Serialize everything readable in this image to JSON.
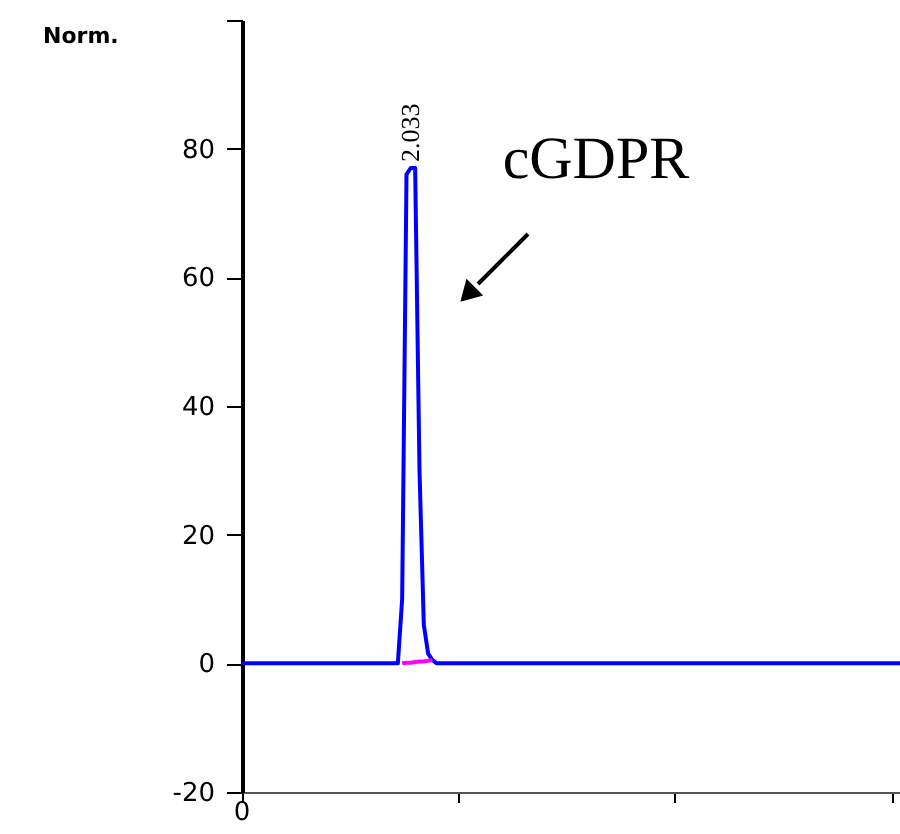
{
  "chart_data": {
    "type": "line",
    "ylabel": "Norm.",
    "categories": [
      null,
      null,
      null,
      null,
      null,
      null,
      null,
      null,
      null,
      null,
      null,
      null,
      null,
      null,
      null,
      null,
      null,
      null,
      null,
      null,
      null,
      null,
      null,
      null,
      null,
      null,
      null,
      null,
      null,
      null,
      null,
      null,
      null,
      null,
      null,
      null,
      null,
      null,
      null,
      null,
      null,
      null,
      null,
      null,
      null,
      null,
      null,
      null,
      null,
      null,
      null,
      null,
      null,
      null,
      null,
      null,
      null,
      null,
      null,
      null,
      null,
      null,
      null,
      null,
      null,
      null,
      null,
      null,
      null,
      null,
      null,
      null,
      null,
      null,
      null,
      null,
      null,
      null,
      null,
      null,
      null,
      null,
      null,
      null,
      null,
      null,
      null,
      null,
      null,
      null,
      null,
      null,
      null,
      null,
      null,
      null,
      null,
      null,
      null,
      null,
      null,
      null,
      null,
      null,
      null,
      null,
      null,
      null,
      null,
      null,
      null,
      null,
      null,
      null,
      null,
      null,
      null,
      null,
      null,
      null,
      null,
      null,
      null,
      null,
      null,
      null,
      null,
      null,
      null,
      null,
      null,
      null,
      null,
      null,
      null,
      null,
      null,
      null,
      null,
      null,
      null,
      null,
      null,
      null,
      null,
      null,
      null,
      null,
      null,
      null,
      null,
      null,
      null
    ],
    "series": [
      {
        "color": "#0000ff",
        "values": [
          0,
          0,
          0,
          0,
          0,
          0,
          0,
          0,
          0,
          0,
          0,
          0,
          0,
          0,
          0,
          0,
          0,
          0,
          0,
          0,
          0,
          0,
          0,
          0,
          0,
          0,
          0,
          0,
          0,
          0,
          0,
          0,
          0,
          0,
          0,
          0,
          0,
          10,
          76,
          77,
          77,
          30,
          6,
          1.5,
          0.5,
          0,
          0,
          0,
          0,
          0,
          0,
          0,
          0,
          0,
          0,
          0,
          0,
          0,
          0,
          0,
          0,
          0,
          0,
          0,
          0,
          0,
          0,
          0,
          0,
          0,
          0,
          0,
          0,
          0,
          0,
          0,
          0,
          0,
          0,
          0,
          0,
          0,
          0,
          0,
          0,
          0,
          0,
          0,
          0,
          0,
          0,
          0,
          0,
          0,
          0,
          0,
          0,
          0,
          0,
          0,
          0,
          0,
          0,
          0,
          0,
          0,
          0,
          0,
          0,
          0,
          0,
          0,
          0,
          0,
          0,
          0,
          0,
          0,
          0,
          0,
          0,
          0,
          0,
          0,
          0,
          0,
          0,
          0,
          0,
          0,
          0,
          0,
          0,
          0,
          0,
          0,
          0,
          0,
          0,
          0,
          0,
          0,
          0,
          0,
          0,
          0,
          0,
          0,
          0,
          0,
          0,
          0,
          0
        ]
      },
      {
        "color": "#ff00ff",
        "values": [
          null,
          null,
          null,
          null,
          null,
          null,
          null,
          null,
          null,
          null,
          null,
          null,
          null,
          null,
          null,
          null,
          null,
          null,
          null,
          null,
          null,
          null,
          null,
          null,
          null,
          null,
          null,
          null,
          null,
          null,
          null,
          null,
          null,
          null,
          null,
          null,
          null,
          0,
          0.1,
          0.1,
          0.2,
          0.3,
          0.3,
          0.4,
          0.5,
          null,
          null,
          null,
          null,
          null,
          null,
          null,
          null,
          null,
          null,
          null,
          null,
          null,
          null,
          null,
          null,
          null,
          null,
          null,
          null,
          null,
          null,
          null,
          null,
          null,
          null,
          null,
          null,
          null,
          null,
          null,
          null,
          null,
          null,
          null,
          null,
          null,
          null,
          null,
          null,
          null,
          null,
          null,
          null,
          null,
          null,
          null,
          null,
          null,
          null,
          null,
          null,
          null,
          null,
          null,
          null,
          null,
          null,
          null,
          null,
          null,
          null,
          null,
          null,
          null,
          null,
          null,
          null,
          null,
          null,
          null,
          null,
          null,
          null,
          null,
          null,
          null,
          null,
          null,
          null,
          null,
          null,
          null,
          null,
          null,
          null,
          null,
          null,
          null,
          null,
          null,
          null,
          null,
          null,
          null,
          null,
          null,
          null,
          null,
          null,
          null,
          null,
          null,
          null,
          null,
          null,
          null,
          null
        ]
      }
    ],
    "tick_labels": "y",
    "ylim": [
      -20,
      100
    ],
    "yticks": [
      -20,
      0,
      20,
      40,
      60,
      80,
      {
        "value": 100,
        "label": null
      }
    ],
    "annotations": [
      "2.033",
      "cGDPR",
      "0"
    ],
    "grid": false,
    "marker": "none",
    "line_style": "solid"
  }
}
